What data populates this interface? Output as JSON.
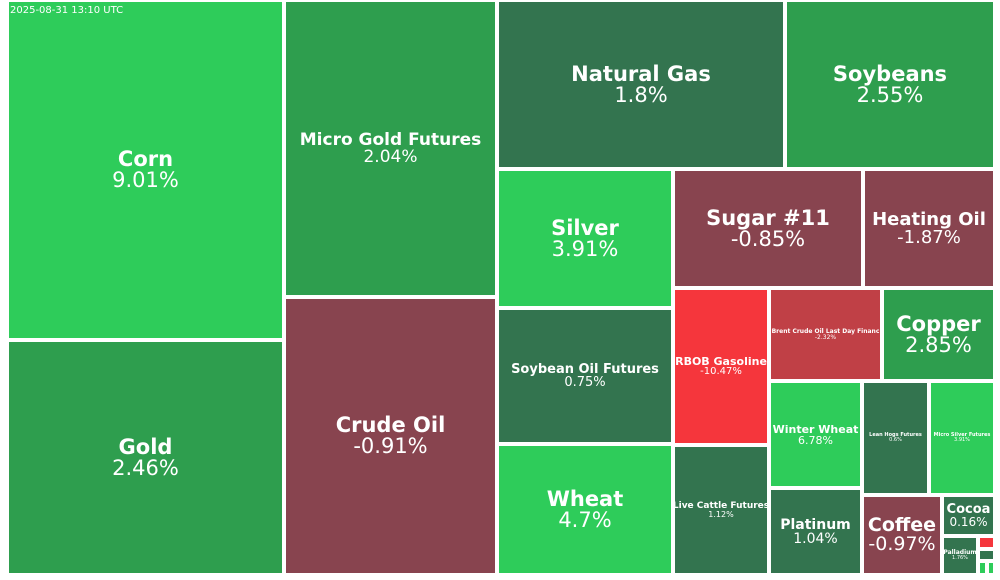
{
  "timestamp": "2025-08-31 13:10 UTC",
  "colors": {
    "strong_up": "#2ecc5a",
    "up": "#2e9e4e",
    "flat_up": "#33744f",
    "down": "#88444f",
    "mid_down": "#c04046",
    "strong_down": "#f5363c"
  },
  "chart_data": {
    "type": "treemap",
    "items": [
      {
        "name": "Corn",
        "change": "9.01%",
        "value": 9.01,
        "color": "strong_up"
      },
      {
        "name": "Gold",
        "change": "2.46%",
        "value": 2.46,
        "color": "up"
      },
      {
        "name": "Micro Gold Futures",
        "change": "2.04%",
        "value": 2.04,
        "color": "up"
      },
      {
        "name": "Crude Oil",
        "change": "-0.91%",
        "value": -0.91,
        "color": "down"
      },
      {
        "name": "Natural Gas",
        "change": "1.8%",
        "value": 1.8,
        "color": "flat_up"
      },
      {
        "name": "Soybeans",
        "change": "2.55%",
        "value": 2.55,
        "color": "up"
      },
      {
        "name": "Silver",
        "change": "3.91%",
        "value": 3.91,
        "color": "strong_up"
      },
      {
        "name": "Sugar #11",
        "change": "-0.85%",
        "value": -0.85,
        "color": "down"
      },
      {
        "name": "Heating Oil",
        "change": "-1.87%",
        "value": -1.87,
        "color": "down"
      },
      {
        "name": "Soybean Oil Futures",
        "change": "0.75%",
        "value": 0.75,
        "color": "flat_up"
      },
      {
        "name": "RBOB Gasoline",
        "change": "-10.47%",
        "value": -10.47,
        "color": "strong_down"
      },
      {
        "name": "Brent Crude Oil Last Day Financ",
        "change": "-2.32%",
        "value": -2.32,
        "color": "mid_down"
      },
      {
        "name": "Copper",
        "change": "2.85%",
        "value": 2.85,
        "color": "up"
      },
      {
        "name": "Wheat",
        "change": "4.7%",
        "value": 4.7,
        "color": "strong_up"
      },
      {
        "name": "Live Cattle Futures",
        "change": "1.12%",
        "value": 1.12,
        "color": "flat_up"
      },
      {
        "name": "Winter Wheat",
        "change": "6.78%",
        "value": 6.78,
        "color": "strong_up"
      },
      {
        "name": "Lean Hogs Futures",
        "change": "0.6%",
        "value": 0.6,
        "color": "flat_up"
      },
      {
        "name": "Micro Silver Futures",
        "change": "3.91%",
        "value": 3.91,
        "color": "strong_up"
      },
      {
        "name": "Platinum",
        "change": "1.04%",
        "value": 1.04,
        "color": "flat_up"
      },
      {
        "name": "Coffee",
        "change": "-0.97%",
        "value": -0.97,
        "color": "down"
      },
      {
        "name": "Cocoa",
        "change": "0.16%",
        "value": 0.16,
        "color": "flat_up"
      },
      {
        "name": "Palladium",
        "change": "1.76%",
        "value": 1.76,
        "color": "flat_up"
      },
      {
        "name": "",
        "change": "",
        "value": null,
        "color": "strong_down"
      },
      {
        "name": "",
        "change": "",
        "value": null,
        "color": "flat_up"
      },
      {
        "name": "",
        "change": "",
        "value": null,
        "color": "strong_up"
      },
      {
        "name": "",
        "change": "",
        "value": null,
        "color": "strong_up"
      }
    ]
  }
}
